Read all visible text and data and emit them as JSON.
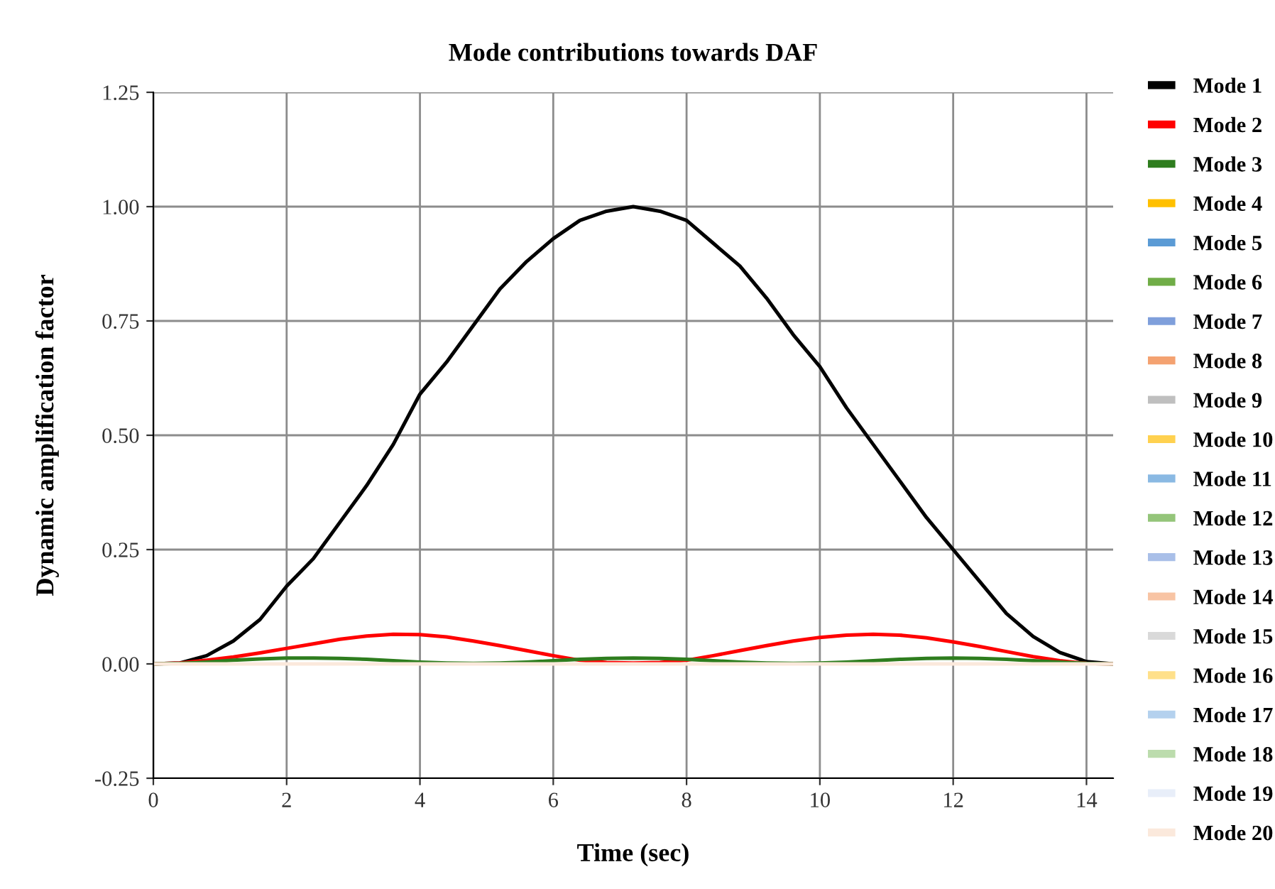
{
  "chart_data": {
    "type": "line",
    "title": "Mode contributions towards DAF",
    "xlabel": "Time (sec)",
    "ylabel": "Dynamic amplification factor",
    "x": [
      0,
      0.4,
      0.8,
      1.2,
      1.6,
      2.0,
      2.4,
      2.8,
      3.2,
      3.6,
      4.0,
      4.4,
      4.8,
      5.2,
      5.6,
      6.0,
      6.4,
      6.8,
      7.2,
      7.6,
      8.0,
      8.4,
      8.8,
      9.2,
      9.6,
      10.0,
      10.4,
      10.8,
      11.2,
      11.6,
      12.0,
      12.4,
      12.8,
      13.2,
      13.6,
      14.0,
      14.4
    ],
    "series": [
      {
        "name": "Mode 1",
        "color": "#000000",
        "values": [
          0,
          0.002,
          0.018,
          0.05,
          0.097,
          0.17,
          0.23,
          0.31,
          0.39,
          0.48,
          0.59,
          0.66,
          0.74,
          0.82,
          0.88,
          0.93,
          0.97,
          0.99,
          1.0,
          0.99,
          0.97,
          0.92,
          0.87,
          0.8,
          0.72,
          0.65,
          0.56,
          0.48,
          0.4,
          0.32,
          0.25,
          0.18,
          0.11,
          0.06,
          0.025,
          0.005,
          0
        ]
      },
      {
        "name": "Mode 2",
        "color": "#ff0000",
        "values": [
          0,
          0.002,
          0.008,
          0.015,
          0.024,
          0.034,
          0.044,
          0.054,
          0.061,
          0.065,
          0.064,
          0.059,
          0.05,
          0.04,
          0.029,
          0.018,
          0.008,
          0.003,
          0.002,
          0.003,
          0.008,
          0.018,
          0.029,
          0.04,
          0.05,
          0.058,
          0.063,
          0.065,
          0.063,
          0.057,
          0.048,
          0.038,
          0.027,
          0.016,
          0.007,
          0.001,
          0
        ]
      },
      {
        "name": "Mode 3",
        "color": "#2e7d1e",
        "values": [
          0,
          0.001,
          0.004,
          0.008,
          0.011,
          0.013,
          0.013,
          0.012,
          0.01,
          0.007,
          0.004,
          0.002,
          0.001,
          0.002,
          0.004,
          0.007,
          0.01,
          0.012,
          0.013,
          0.012,
          0.01,
          0.007,
          0.004,
          0.002,
          0.001,
          0.002,
          0.004,
          0.007,
          0.01,
          0.012,
          0.013,
          0.012,
          0.01,
          0.007,
          0.004,
          0.001,
          0
        ]
      },
      {
        "name": "Mode 4",
        "color": "#ffc000",
        "values": [
          null,
          null,
          null,
          null,
          null,
          null,
          null,
          null,
          null,
          null,
          null,
          null,
          null,
          null,
          null,
          null,
          null,
          null,
          null,
          null,
          null,
          null,
          null,
          null,
          null,
          null,
          null,
          null,
          null,
          null,
          null,
          null,
          null,
          null,
          null,
          null,
          null
        ]
      },
      {
        "name": "Mode 5",
        "color": "#5b9bd5",
        "values": [
          null,
          null,
          null,
          null,
          null,
          null,
          null,
          null,
          null,
          null,
          null,
          null,
          null,
          null,
          null,
          null,
          null,
          null,
          null,
          null,
          null,
          null,
          null,
          null,
          null,
          null,
          null,
          null,
          null,
          null,
          null,
          null,
          null,
          null,
          null,
          null,
          null
        ]
      },
      {
        "name": "Mode 6",
        "color": "#70ad47",
        "values": [
          null,
          null,
          null,
          null,
          null,
          null,
          null,
          null,
          null,
          null,
          null,
          null,
          null,
          null,
          null,
          null,
          null,
          null,
          null,
          null,
          null,
          null,
          null,
          null,
          null,
          null,
          null,
          null,
          null,
          null,
          null,
          null,
          null,
          null,
          null,
          null,
          null
        ]
      },
      {
        "name": "Mode 7",
        "color": "#7f9fdb",
        "values": [
          null,
          null,
          null,
          null,
          null,
          null,
          null,
          null,
          null,
          null,
          null,
          null,
          null,
          null,
          null,
          null,
          null,
          null,
          null,
          null,
          null,
          null,
          null,
          null,
          null,
          null,
          null,
          null,
          null,
          null,
          null,
          null,
          null,
          null,
          null,
          null,
          null
        ]
      },
      {
        "name": "Mode 8",
        "color": "#f4a271",
        "values": [
          null,
          null,
          null,
          null,
          null,
          null,
          null,
          null,
          null,
          null,
          null,
          null,
          null,
          null,
          null,
          null,
          null,
          null,
          null,
          null,
          null,
          null,
          null,
          null,
          null,
          null,
          null,
          null,
          null,
          null,
          null,
          null,
          null,
          null,
          null,
          null,
          null
        ]
      },
      {
        "name": "Mode 9",
        "color": "#bfbfbf",
        "values": [
          null,
          null,
          null,
          null,
          null,
          null,
          null,
          null,
          null,
          null,
          null,
          null,
          null,
          null,
          null,
          null,
          null,
          null,
          null,
          null,
          null,
          null,
          null,
          null,
          null,
          null,
          null,
          null,
          null,
          null,
          null,
          null,
          null,
          null,
          null,
          null,
          null
        ]
      },
      {
        "name": "Mode 10",
        "color": "#ffd14f",
        "values": [
          null,
          null,
          null,
          null,
          null,
          null,
          null,
          null,
          null,
          null,
          null,
          null,
          null,
          null,
          null,
          null,
          null,
          null,
          null,
          null,
          null,
          null,
          null,
          null,
          null,
          null,
          null,
          null,
          null,
          null,
          null,
          null,
          null,
          null,
          null,
          null,
          null
        ]
      },
      {
        "name": "Mode 11",
        "color": "#8ab9e3",
        "values": [
          null,
          null,
          null,
          null,
          null,
          null,
          null,
          null,
          null,
          null,
          null,
          null,
          null,
          null,
          null,
          null,
          null,
          null,
          null,
          null,
          null,
          null,
          null,
          null,
          null,
          null,
          null,
          null,
          null,
          null,
          null,
          null,
          null,
          null,
          null,
          null,
          null
        ]
      },
      {
        "name": "Mode 12",
        "color": "#94c57a",
        "values": [
          null,
          null,
          null,
          null,
          null,
          null,
          null,
          null,
          null,
          null,
          null,
          null,
          null,
          null,
          null,
          null,
          null,
          null,
          null,
          null,
          null,
          null,
          null,
          null,
          null,
          null,
          null,
          null,
          null,
          null,
          null,
          null,
          null,
          null,
          null,
          null,
          null
        ]
      },
      {
        "name": "Mode 13",
        "color": "#a9bfe8",
        "values": [
          null,
          null,
          null,
          null,
          null,
          null,
          null,
          null,
          null,
          null,
          null,
          null,
          null,
          null,
          null,
          null,
          null,
          null,
          null,
          null,
          null,
          null,
          null,
          null,
          null,
          null,
          null,
          null,
          null,
          null,
          null,
          null,
          null,
          null,
          null,
          null,
          null
        ]
      },
      {
        "name": "Mode 14",
        "color": "#f8c4a4",
        "values": [
          null,
          null,
          null,
          null,
          null,
          null,
          null,
          null,
          null,
          null,
          null,
          null,
          null,
          null,
          null,
          null,
          null,
          null,
          null,
          null,
          null,
          null,
          null,
          null,
          null,
          null,
          null,
          null,
          null,
          null,
          null,
          null,
          null,
          null,
          null,
          null,
          null
        ]
      },
      {
        "name": "Mode 15",
        "color": "#d9d9d9",
        "values": [
          null,
          null,
          null,
          null,
          null,
          null,
          null,
          null,
          null,
          null,
          null,
          null,
          null,
          null,
          null,
          null,
          null,
          null,
          null,
          null,
          null,
          null,
          null,
          null,
          null,
          null,
          null,
          null,
          null,
          null,
          null,
          null,
          null,
          null,
          null,
          null,
          null
        ]
      },
      {
        "name": "Mode 16",
        "color": "#ffe08a",
        "values": [
          null,
          null,
          null,
          null,
          null,
          null,
          null,
          null,
          null,
          null,
          null,
          null,
          null,
          null,
          null,
          null,
          null,
          null,
          null,
          null,
          null,
          null,
          null,
          null,
          null,
          null,
          null,
          null,
          null,
          null,
          null,
          null,
          null,
          null,
          null,
          null,
          null
        ]
      },
      {
        "name": "Mode 17",
        "color": "#b4d1ee",
        "values": [
          null,
          null,
          null,
          null,
          null,
          null,
          null,
          null,
          null,
          null,
          null,
          null,
          null,
          null,
          null,
          null,
          null,
          null,
          null,
          null,
          null,
          null,
          null,
          null,
          null,
          null,
          null,
          null,
          null,
          null,
          null,
          null,
          null,
          null,
          null,
          null,
          null
        ]
      },
      {
        "name": "Mode 18",
        "color": "#bcdcad",
        "values": [
          null,
          null,
          null,
          null,
          null,
          null,
          null,
          null,
          null,
          null,
          null,
          null,
          null,
          null,
          null,
          null,
          null,
          null,
          null,
          null,
          null,
          null,
          null,
          null,
          null,
          null,
          null,
          null,
          null,
          null,
          null,
          null,
          null,
          null,
          null,
          null,
          null
        ]
      },
      {
        "name": "Mode 19",
        "color": "#e8eef9",
        "values": [
          null,
          null,
          null,
          null,
          null,
          null,
          null,
          null,
          null,
          null,
          null,
          null,
          null,
          null,
          null,
          null,
          null,
          null,
          null,
          null,
          null,
          null,
          null,
          null,
          null,
          null,
          null,
          null,
          null,
          null,
          null,
          null,
          null,
          null,
          null,
          null,
          null
        ]
      },
      {
        "name": "Mode 20",
        "color": "#fbe9dc",
        "x": [
          0,
          14.4
        ],
        "values": [
          0,
          0
        ]
      }
    ],
    "xlim": [
      0,
      14.4
    ],
    "xticks": [
      0,
      2,
      4,
      6,
      8,
      10,
      12,
      14
    ],
    "ylim": [
      -0.25,
      1.25
    ],
    "yticks": [
      {
        "value": -0.25,
        "label": "-0.25"
      },
      {
        "value": 0,
        "label": "0.00"
      },
      {
        "value": 0.25,
        "label": "0.25"
      },
      {
        "value": 0.5,
        "label": "0.50"
      },
      {
        "value": 0.75,
        "label": "0.75"
      },
      {
        "value": 1.0,
        "label": "1.00"
      },
      {
        "value": 1.25,
        "label": "1.25"
      }
    ],
    "grid": true,
    "legend": "right"
  }
}
